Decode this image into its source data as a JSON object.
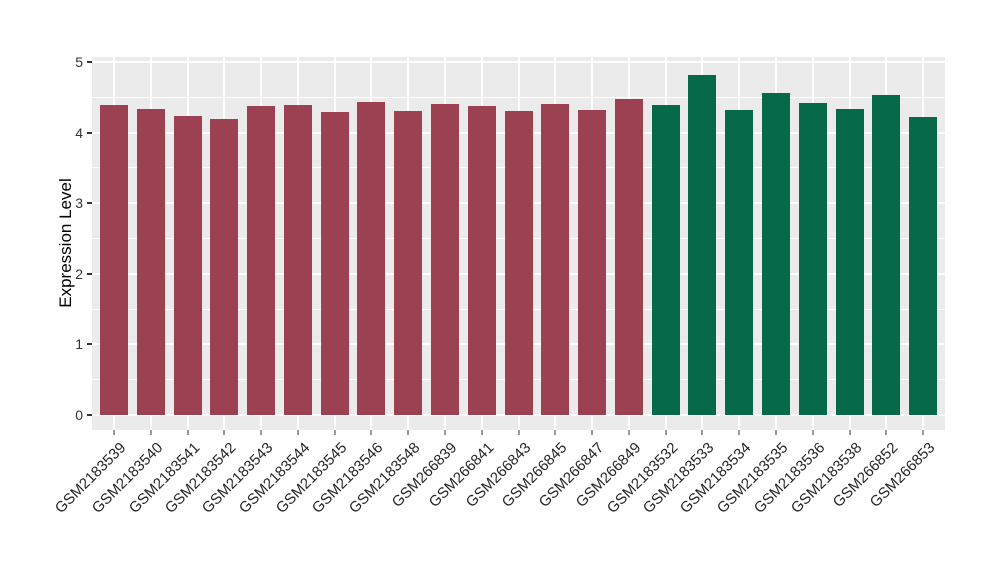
{
  "figure": {
    "ylabel": "Expression Level"
  },
  "chart_data": {
    "type": "bar",
    "title": "",
    "xlabel": "",
    "ylabel": "Expression Level",
    "categories": [
      "GSM2183539",
      "GSM2183540",
      "GSM2183541",
      "GSM2183542",
      "GSM2183543",
      "GSM2183544",
      "GSM2183545",
      "GSM2183546",
      "GSM2183548",
      "GSM266839",
      "GSM266841",
      "GSM266843",
      "GSM266845",
      "GSM266847",
      "GSM266849",
      "GSM2183532",
      "GSM2183533",
      "GSM2183534",
      "GSM2183535",
      "GSM2183536",
      "GSM2183538",
      "GSM266852",
      "GSM266853"
    ],
    "values": [
      4.39,
      4.33,
      4.24,
      4.19,
      4.38,
      4.39,
      4.29,
      4.44,
      4.3,
      4.4,
      4.37,
      4.31,
      4.4,
      4.32,
      4.47,
      4.39,
      4.82,
      4.32,
      4.56,
      4.42,
      4.34,
      4.53,
      4.22
    ],
    "bar_colors": [
      "#9C4152",
      "#9C4152",
      "#9C4152",
      "#9C4152",
      "#9C4152",
      "#9C4152",
      "#9C4152",
      "#9C4152",
      "#9C4152",
      "#9C4152",
      "#9C4152",
      "#9C4152",
      "#9C4152",
      "#9C4152",
      "#9C4152",
      "#05694A",
      "#05694A",
      "#05694A",
      "#05694A",
      "#05694A",
      "#05694A",
      "#05694A",
      "#05694A"
    ],
    "group_colors": {
      "group1": "#9C4152",
      "group2": "#05694A"
    },
    "ylim": [
      0,
      5
    ],
    "yticks": [
      0,
      1,
      2,
      3,
      4,
      5
    ],
    "y_minor_ticks": [
      0.5,
      1.5,
      2.5,
      3.5,
      4.5
    ],
    "x_tick_rotation": 45,
    "grid": "major-and-minor-white-on-gray",
    "panel_bg": "#EBEBEB",
    "grid_color": "#FFFFFF",
    "legend_position": "none"
  }
}
